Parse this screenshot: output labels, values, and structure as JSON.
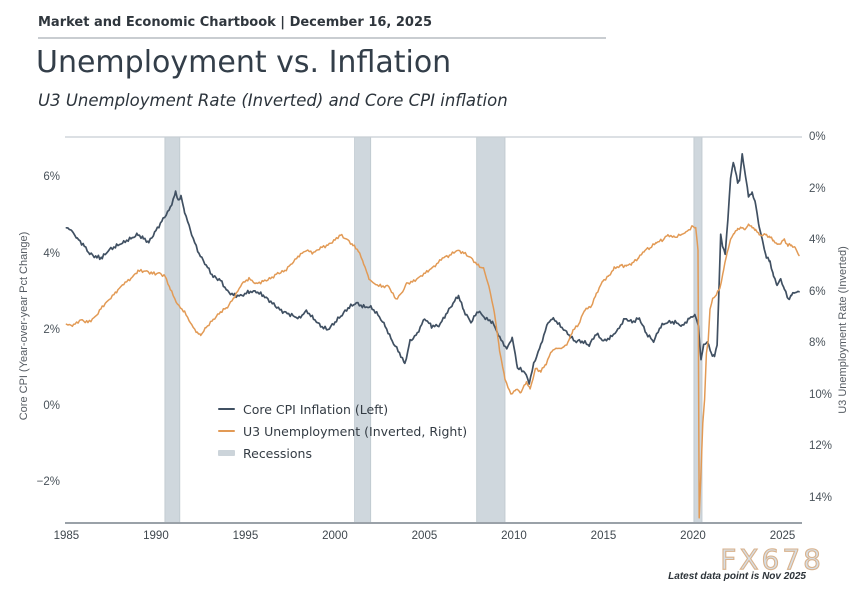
{
  "header": {
    "text": "Market and Economic Chartbook | December 16, 2025"
  },
  "title": "Unemployment vs. Inflation",
  "subtitle": "U3 Unemployment Rate (Inverted) and Core CPI inflation",
  "watermark": "FX678",
  "footnote": "Latest data point is Nov 2025",
  "colors": {
    "core_cpi": "#405062",
    "u3": "#e29a55",
    "recession_band": "#cfd7dd",
    "recession_band_edge": "#bdc7ce",
    "plot_top_line": "#c8ced4",
    "x_spine": "#9aa1a8"
  },
  "chart_data": {
    "type": "line",
    "title": "Unemployment vs. Inflation",
    "subtitle": "U3 Unemployment Rate (Inverted) and Core CPI inflation",
    "grid": "off",
    "legend_position": "lower-left-inside",
    "left_axis": {
      "label": "Core CPI (Year-over-year Pct Change)",
      "ticks": [
        "6%",
        "4%",
        "2%",
        "0%",
        "−2%"
      ],
      "tick_values": [
        6,
        4,
        2,
        0,
        -2
      ],
      "range": [
        -3.07,
        7.06
      ]
    },
    "right_axis": {
      "label": "U3 Unemployment Rate (Inverted)",
      "inverted": true,
      "ticks": [
        "0%",
        "2%",
        "4%",
        "6%",
        "8%",
        "10%",
        "12%",
        "14%"
      ],
      "tick_values": [
        0,
        2,
        4,
        6,
        8,
        10,
        12,
        14
      ],
      "range": [
        0,
        14.99
      ]
    },
    "x_axis": {
      "ticks": [
        "1985",
        "1990",
        "1995",
        "2000",
        "2005",
        "2010",
        "2015",
        "2020",
        "2025"
      ],
      "tick_values": [
        1985,
        1990,
        1995,
        2000,
        2005,
        2010,
        2015,
        2020,
        2025
      ],
      "range": [
        1984.92,
        2026.09
      ]
    },
    "legend": [
      {
        "label": "Core CPI Inflation (Left)",
        "color": "#405062",
        "swatch": "line"
      },
      {
        "label": "U3 Unemployment (Inverted, Right)",
        "color": "#e29a55",
        "swatch": "line"
      },
      {
        "label": "Recessions",
        "color": "#ccd4da",
        "swatch": "band"
      }
    ],
    "recessions": [
      [
        1990.5,
        1991.33
      ],
      [
        2001.1,
        2002.0
      ],
      [
        2007.92,
        2009.5
      ],
      [
        2020.05,
        2020.5
      ]
    ],
    "series": [
      {
        "name": "Core CPI Inflation (Left)",
        "axis": "left",
        "color": "#405062",
        "points": [
          [
            1985.0,
            4.7
          ],
          [
            1985.3,
            4.6
          ],
          [
            1985.6,
            4.4
          ],
          [
            1986.0,
            4.2
          ],
          [
            1986.3,
            4.0
          ],
          [
            1986.7,
            3.9
          ],
          [
            1987.0,
            3.9
          ],
          [
            1987.4,
            4.1
          ],
          [
            1987.8,
            4.2
          ],
          [
            1988.2,
            4.3
          ],
          [
            1988.6,
            4.4
          ],
          [
            1989.0,
            4.5
          ],
          [
            1989.3,
            4.4
          ],
          [
            1989.6,
            4.3
          ],
          [
            1990.0,
            4.6
          ],
          [
            1990.4,
            4.9
          ],
          [
            1990.8,
            5.2
          ],
          [
            1991.1,
            5.6
          ],
          [
            1991.25,
            5.4
          ],
          [
            1991.4,
            5.5
          ],
          [
            1991.6,
            5.1
          ],
          [
            1992.0,
            4.5
          ],
          [
            1992.4,
            4.0
          ],
          [
            1992.8,
            3.7
          ],
          [
            1993.2,
            3.4
          ],
          [
            1993.6,
            3.3
          ],
          [
            1994.0,
            3.0
          ],
          [
            1994.4,
            2.9
          ],
          [
            1994.8,
            2.9
          ],
          [
            1995.2,
            3.0
          ],
          [
            1995.6,
            3.0
          ],
          [
            1996.0,
            2.9
          ],
          [
            1996.5,
            2.7
          ],
          [
            1997.0,
            2.5
          ],
          [
            1997.5,
            2.4
          ],
          [
            1998.0,
            2.3
          ],
          [
            1998.4,
            2.5
          ],
          [
            1998.8,
            2.3
          ],
          [
            1999.2,
            2.1
          ],
          [
            1999.6,
            2.0
          ],
          [
            2000.0,
            2.2
          ],
          [
            2000.4,
            2.4
          ],
          [
            2000.8,
            2.6
          ],
          [
            2001.2,
            2.7
          ],
          [
            2001.6,
            2.6
          ],
          [
            2002.0,
            2.6
          ],
          [
            2002.4,
            2.4
          ],
          [
            2002.8,
            2.1
          ],
          [
            2003.2,
            1.7
          ],
          [
            2003.6,
            1.4
          ],
          [
            2003.9,
            1.1
          ],
          [
            2004.2,
            1.7
          ],
          [
            2004.6,
            1.9
          ],
          [
            2005.0,
            2.3
          ],
          [
            2005.4,
            2.1
          ],
          [
            2005.8,
            2.1
          ],
          [
            2006.2,
            2.4
          ],
          [
            2006.6,
            2.7
          ],
          [
            2006.9,
            2.9
          ],
          [
            2007.2,
            2.5
          ],
          [
            2007.6,
            2.2
          ],
          [
            2008.0,
            2.5
          ],
          [
            2008.4,
            2.3
          ],
          [
            2008.8,
            2.2
          ],
          [
            2009.2,
            1.8
          ],
          [
            2009.6,
            1.5
          ],
          [
            2009.9,
            1.8
          ],
          [
            2010.2,
            1.0
          ],
          [
            2010.6,
            0.9
          ],
          [
            2010.85,
            0.6
          ],
          [
            2011.1,
            1.1
          ],
          [
            2011.5,
            1.6
          ],
          [
            2011.9,
            2.2
          ],
          [
            2012.2,
            2.3
          ],
          [
            2012.6,
            2.1
          ],
          [
            2013.0,
            1.9
          ],
          [
            2013.4,
            1.7
          ],
          [
            2013.8,
            1.7
          ],
          [
            2014.2,
            1.6
          ],
          [
            2014.6,
            1.9
          ],
          [
            2015.0,
            1.7
          ],
          [
            2015.4,
            1.8
          ],
          [
            2015.8,
            2.0
          ],
          [
            2016.2,
            2.3
          ],
          [
            2016.6,
            2.2
          ],
          [
            2017.0,
            2.3
          ],
          [
            2017.4,
            1.9
          ],
          [
            2017.8,
            1.7
          ],
          [
            2018.2,
            2.1
          ],
          [
            2018.6,
            2.2
          ],
          [
            2019.0,
            2.2
          ],
          [
            2019.4,
            2.1
          ],
          [
            2019.8,
            2.3
          ],
          [
            2020.1,
            2.4
          ],
          [
            2020.3,
            2.1
          ],
          [
            2020.45,
            1.2
          ],
          [
            2020.6,
            1.6
          ],
          [
            2020.8,
            1.7
          ],
          [
            2021.0,
            1.4
          ],
          [
            2021.2,
            1.3
          ],
          [
            2021.35,
            1.6
          ],
          [
            2021.45,
            3.0
          ],
          [
            2021.55,
            4.5
          ],
          [
            2021.65,
            4.2
          ],
          [
            2021.8,
            4.0
          ],
          [
            2021.95,
            4.9
          ],
          [
            2022.1,
            6.0
          ],
          [
            2022.25,
            6.4
          ],
          [
            2022.35,
            6.2
          ],
          [
            2022.5,
            5.9
          ],
          [
            2022.6,
            5.9
          ],
          [
            2022.75,
            6.6
          ],
          [
            2022.85,
            6.3
          ],
          [
            2022.95,
            6.0
          ],
          [
            2023.1,
            5.5
          ],
          [
            2023.3,
            5.6
          ],
          [
            2023.5,
            5.3
          ],
          [
            2023.7,
            4.7
          ],
          [
            2023.9,
            4.3
          ],
          [
            2024.1,
            3.9
          ],
          [
            2024.3,
            3.8
          ],
          [
            2024.5,
            3.4
          ],
          [
            2024.7,
            3.2
          ],
          [
            2024.9,
            3.3
          ],
          [
            2025.1,
            3.1
          ],
          [
            2025.3,
            2.8
          ],
          [
            2025.5,
            2.9
          ],
          [
            2025.7,
            3.0
          ],
          [
            2025.92,
            3.0
          ]
        ]
      },
      {
        "name": "U3 Unemployment (Inverted, Right)",
        "axis": "right",
        "color": "#e29a55",
        "points": [
          [
            1985.0,
            7.3
          ],
          [
            1985.4,
            7.3
          ],
          [
            1985.8,
            7.1
          ],
          [
            1986.2,
            7.2
          ],
          [
            1986.6,
            7.0
          ],
          [
            1987.0,
            6.6
          ],
          [
            1987.4,
            6.3
          ],
          [
            1987.8,
            6.0
          ],
          [
            1988.2,
            5.7
          ],
          [
            1988.6,
            5.5
          ],
          [
            1989.0,
            5.2
          ],
          [
            1989.4,
            5.2
          ],
          [
            1989.8,
            5.3
          ],
          [
            1990.2,
            5.3
          ],
          [
            1990.5,
            5.4
          ],
          [
            1990.8,
            5.9
          ],
          [
            1991.2,
            6.5
          ],
          [
            1991.6,
            6.8
          ],
          [
            1992.0,
            7.3
          ],
          [
            1992.3,
            7.6
          ],
          [
            1992.5,
            7.7
          ],
          [
            1992.8,
            7.4
          ],
          [
            1993.2,
            7.1
          ],
          [
            1993.6,
            6.8
          ],
          [
            1994.0,
            6.6
          ],
          [
            1994.4,
            6.2
          ],
          [
            1994.8,
            5.7
          ],
          [
            1995.2,
            5.5
          ],
          [
            1995.6,
            5.7
          ],
          [
            1996.0,
            5.6
          ],
          [
            1996.4,
            5.5
          ],
          [
            1996.8,
            5.3
          ],
          [
            1997.2,
            5.2
          ],
          [
            1997.6,
            4.9
          ],
          [
            1998.0,
            4.6
          ],
          [
            1998.4,
            4.4
          ],
          [
            1998.8,
            4.5
          ],
          [
            1999.2,
            4.3
          ],
          [
            1999.6,
            4.2
          ],
          [
            2000.0,
            4.0
          ],
          [
            2000.3,
            3.8
          ],
          [
            2000.7,
            4.0
          ],
          [
            2001.0,
            4.2
          ],
          [
            2001.3,
            4.4
          ],
          [
            2001.6,
            4.9
          ],
          [
            2001.9,
            5.5
          ],
          [
            2002.2,
            5.7
          ],
          [
            2002.6,
            5.8
          ],
          [
            2003.0,
            5.8
          ],
          [
            2003.4,
            6.3
          ],
          [
            2003.7,
            6.1
          ],
          [
            2004.0,
            5.7
          ],
          [
            2004.4,
            5.6
          ],
          [
            2004.8,
            5.4
          ],
          [
            2005.2,
            5.2
          ],
          [
            2005.6,
            5.0
          ],
          [
            2006.0,
            4.7
          ],
          [
            2006.4,
            4.6
          ],
          [
            2006.8,
            4.4
          ],
          [
            2007.2,
            4.5
          ],
          [
            2007.6,
            4.7
          ],
          [
            2008.0,
            5.0
          ],
          [
            2008.3,
            5.1
          ],
          [
            2008.6,
            5.8
          ],
          [
            2008.9,
            6.8
          ],
          [
            2009.2,
            8.3
          ],
          [
            2009.5,
            9.4
          ],
          [
            2009.83,
            10.0
          ],
          [
            2010.1,
            9.8
          ],
          [
            2010.4,
            9.9
          ],
          [
            2010.7,
            9.5
          ],
          [
            2010.9,
            9.8
          ],
          [
            2011.2,
            9.0
          ],
          [
            2011.5,
            9.1
          ],
          [
            2011.8,
            8.8
          ],
          [
            2012.1,
            8.3
          ],
          [
            2012.4,
            8.2
          ],
          [
            2012.7,
            8.2
          ],
          [
            2013.0,
            8.0
          ],
          [
            2013.3,
            7.5
          ],
          [
            2013.6,
            7.3
          ],
          [
            2013.95,
            6.7
          ],
          [
            2014.3,
            6.6
          ],
          [
            2014.6,
            6.1
          ],
          [
            2014.95,
            5.6
          ],
          [
            2015.3,
            5.4
          ],
          [
            2015.6,
            5.1
          ],
          [
            2015.95,
            5.0
          ],
          [
            2016.3,
            5.0
          ],
          [
            2016.6,
            4.9
          ],
          [
            2016.95,
            4.7
          ],
          [
            2017.3,
            4.4
          ],
          [
            2017.6,
            4.3
          ],
          [
            2017.95,
            4.1
          ],
          [
            2018.3,
            4.0
          ],
          [
            2018.6,
            3.8
          ],
          [
            2018.95,
            3.9
          ],
          [
            2019.3,
            3.8
          ],
          [
            2019.6,
            3.7
          ],
          [
            2019.95,
            3.5
          ],
          [
            2020.15,
            3.5
          ],
          [
            2020.28,
            4.4
          ],
          [
            2020.35,
            14.8
          ],
          [
            2020.45,
            13.0
          ],
          [
            2020.55,
            11.1
          ],
          [
            2020.65,
            10.2
          ],
          [
            2020.75,
            8.4
          ],
          [
            2020.85,
            7.9
          ],
          [
            2020.95,
            6.7
          ],
          [
            2021.1,
            6.3
          ],
          [
            2021.3,
            6.1
          ],
          [
            2021.5,
            5.9
          ],
          [
            2021.7,
            5.2
          ],
          [
            2021.9,
            4.5
          ],
          [
            2022.1,
            4.0
          ],
          [
            2022.3,
            3.7
          ],
          [
            2022.5,
            3.6
          ],
          [
            2022.7,
            3.5
          ],
          [
            2022.9,
            3.6
          ],
          [
            2023.1,
            3.4
          ],
          [
            2023.3,
            3.5
          ],
          [
            2023.5,
            3.6
          ],
          [
            2023.7,
            3.8
          ],
          [
            2023.9,
            3.8
          ],
          [
            2024.1,
            3.8
          ],
          [
            2024.3,
            3.9
          ],
          [
            2024.5,
            4.0
          ],
          [
            2024.7,
            4.2
          ],
          [
            2024.9,
            4.1
          ],
          [
            2025.1,
            4.0
          ],
          [
            2025.3,
            4.2
          ],
          [
            2025.5,
            4.2
          ],
          [
            2025.7,
            4.3
          ],
          [
            2025.92,
            4.6
          ]
        ]
      }
    ]
  }
}
